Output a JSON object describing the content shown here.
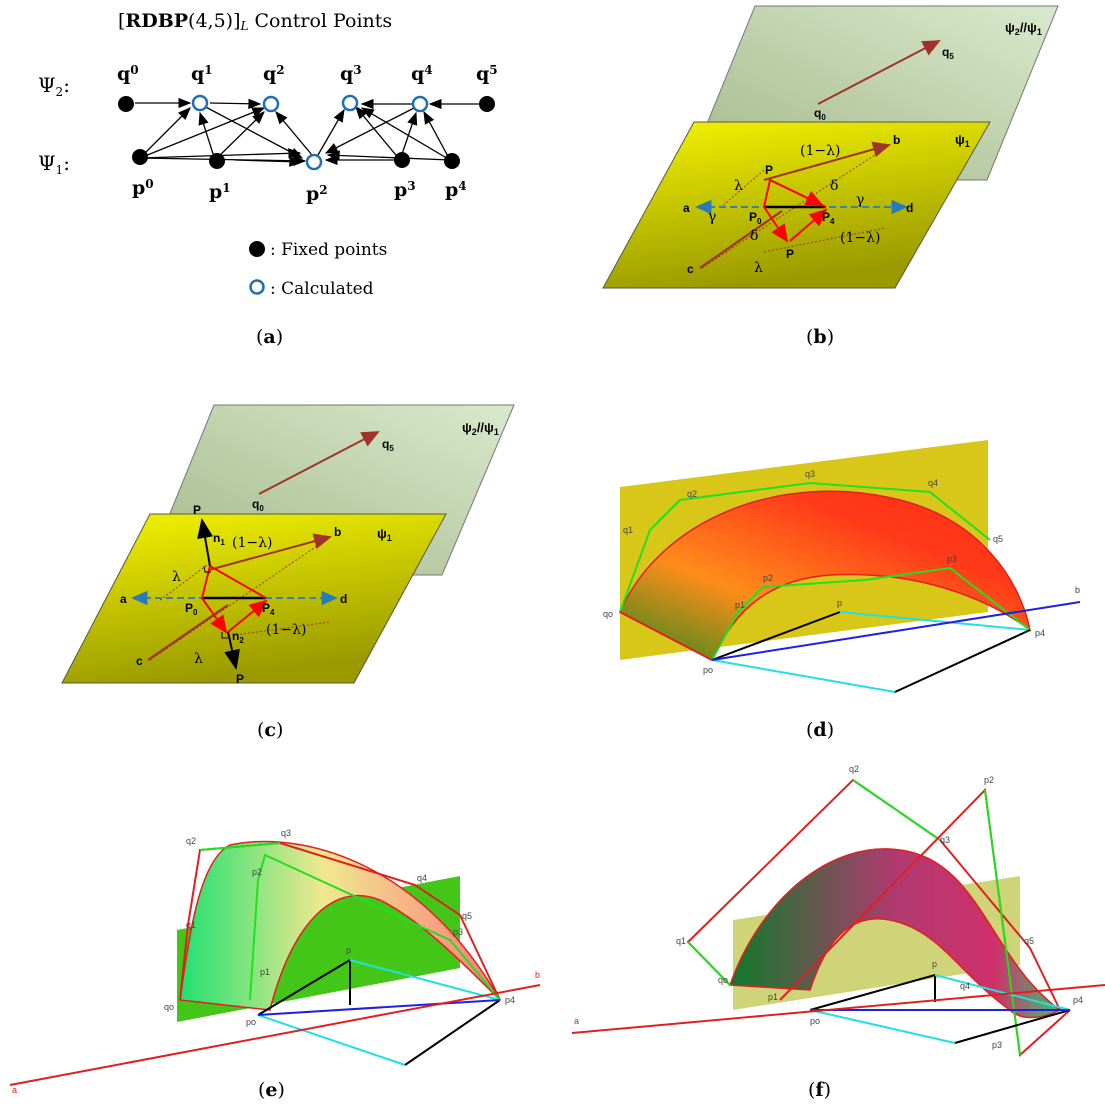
{
  "panel_a": {
    "title_bold": "RDBP",
    "title_args": "(4,5)]",
    "title_sub": "L",
    "title_rest": " Control Points",
    "title_open": "[",
    "row2_label": "Ψ",
    "row2_sub": "2",
    "row1_label": "Ψ",
    "row1_sub": "1",
    "colon": ":",
    "q_labels": [
      "q",
      "q",
      "q",
      "q",
      "q",
      "q"
    ],
    "q_subs": [
      "0",
      "1",
      "2",
      "3",
      "4",
      "5"
    ],
    "p_labels": [
      "p",
      "p",
      "p",
      "p",
      "p"
    ],
    "p_subs": [
      "0",
      "1",
      "2",
      "3",
      "4"
    ],
    "legend_fixed": ": Fixed points",
    "legend_calc": ": Calculated",
    "caption": "a"
  },
  "panel_b": {
    "plane_top": "ψ",
    "plane_top_sub1": "2",
    "plane_top_mid": "//ψ",
    "plane_top_sub2": "1",
    "plane_bottom": "ψ",
    "plane_bottom_sub": "1",
    "q0": "q",
    "q0_sub": "0",
    "q5": "q",
    "q5_sub": "5",
    "a": "a",
    "b": "b",
    "c": "c",
    "d": "d",
    "P": "P",
    "P0": "P",
    "P0_sub": "0",
    "P4": "P",
    "P4_sub": "4",
    "lambda": "λ",
    "one_minus_lambda": "(1−λ)",
    "gamma": "γ",
    "delta": "δ",
    "caption": "b"
  },
  "panel_c": {
    "plane_top": "ψ",
    "plane_top_sub1": "2",
    "plane_top_mid": "//ψ",
    "plane_top_sub2": "1",
    "plane_bottom": "ψ",
    "plane_bottom_sub": "1",
    "q0": "q",
    "q0_sub": "0",
    "q5": "q",
    "q5_sub": "5",
    "a": "a",
    "b": "b",
    "c": "c",
    "d": "d",
    "P": "P",
    "P0": "P",
    "P0_sub": "0",
    "P4": "P",
    "P4_sub": "4",
    "n1": "n",
    "n1_sub": "1",
    "n2": "n",
    "n2_sub": "2",
    "lambda": "λ",
    "one_minus_lambda": "(1−λ)",
    "caption": "c"
  },
  "panel_d": {
    "labels": [
      "qo",
      "q1",
      "q2",
      "q3",
      "q4",
      "q5",
      "p1",
      "p2",
      "p3",
      "p4",
      "p",
      "po",
      "b"
    ],
    "caption": "d"
  },
  "panel_e": {
    "labels": [
      "q2",
      "q3",
      "q4",
      "q5",
      "q1",
      "qo",
      "p2",
      "p1",
      "p3",
      "p4",
      "p",
      "po",
      "a",
      "b"
    ],
    "caption": "e"
  },
  "panel_f": {
    "labels": [
      "q2",
      "p2",
      "q3",
      "q1",
      "q5",
      "qo",
      "p1",
      "p",
      "q4",
      "p4",
      "po",
      "p3",
      "a"
    ],
    "caption": "f"
  },
  "colors": {
    "yellow_plane": "#c8c800",
    "green_plane": "#b9cfa6",
    "arrow_red": "#ff0000",
    "arrow_brown": "#a0342a",
    "dashed_blue": "#2a7ab8",
    "calc_circle": "#1f6fb4"
  }
}
